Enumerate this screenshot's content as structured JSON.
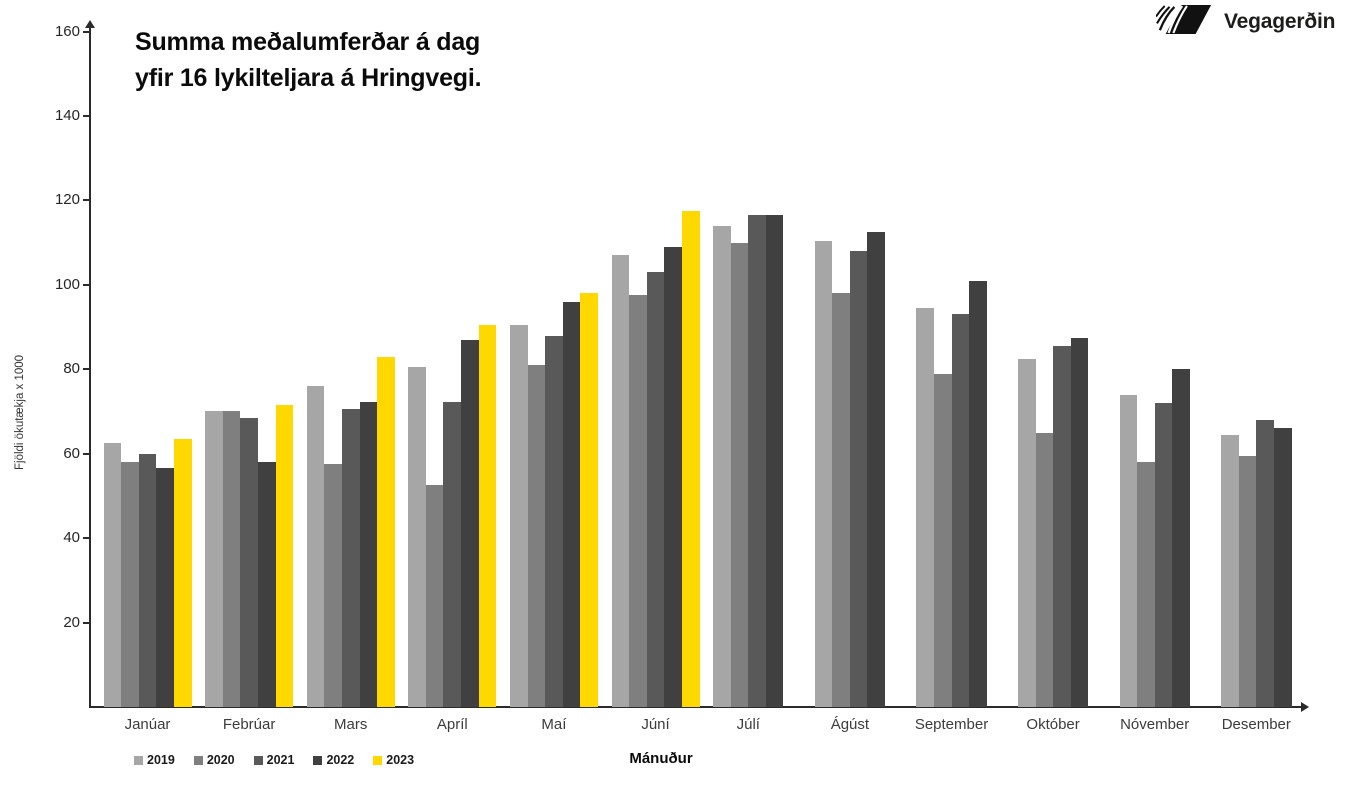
{
  "logo": {
    "text": "Vegagerðin"
  },
  "title": {
    "line1": "Summa meðalumferðar á dag",
    "line2": "yfir 16 lykilteljara á Hringvegi."
  },
  "chart_data": {
    "type": "bar",
    "title": "Summa meðalumferðar á dag yfir 16 lykilteljara á Hringvegi.",
    "xlabel": "Mánuður",
    "ylabel": "Fjöldi ökutækja x 1000",
    "ylim": [
      0,
      160
    ],
    "yticks": [
      20,
      40,
      60,
      80,
      100,
      120,
      140,
      160
    ],
    "grid": false,
    "legend_position": "bottom-left",
    "categories": [
      "Janúar",
      "Febrúar",
      "Mars",
      "Apríl",
      "Maí",
      "Júní",
      "Júlí",
      "Ágúst",
      "September",
      "Október",
      "Nóvember",
      "Desember"
    ],
    "series": [
      {
        "name": "2019",
        "color": "#a6a6a6",
        "values": [
          62.5,
          70,
          76,
          80.5,
          90.5,
          107,
          114,
          110.5,
          94.5,
          82.5,
          74,
          64.5
        ]
      },
      {
        "name": "2020",
        "color": "#7f7f7f",
        "values": [
          58,
          70.2,
          57.5,
          52.5,
          81,
          97.5,
          110,
          98,
          79,
          65,
          58,
          59.5
        ]
      },
      {
        "name": "2021",
        "color": "#595959",
        "values": [
          60,
          68.5,
          70.5,
          72.3,
          88,
          103,
          116.5,
          108,
          93,
          85.5,
          72,
          68
        ]
      },
      {
        "name": "2022",
        "color": "#404040",
        "values": [
          56.5,
          58,
          72.3,
          87,
          96,
          109,
          116.5,
          112.5,
          101,
          87.5,
          80,
          66
        ]
      },
      {
        "name": "2023",
        "color": "#ffd800",
        "values": [
          63.5,
          71.5,
          83,
          90.5,
          98,
          117.5,
          null,
          null,
          null,
          null,
          null,
          null
        ]
      }
    ]
  }
}
